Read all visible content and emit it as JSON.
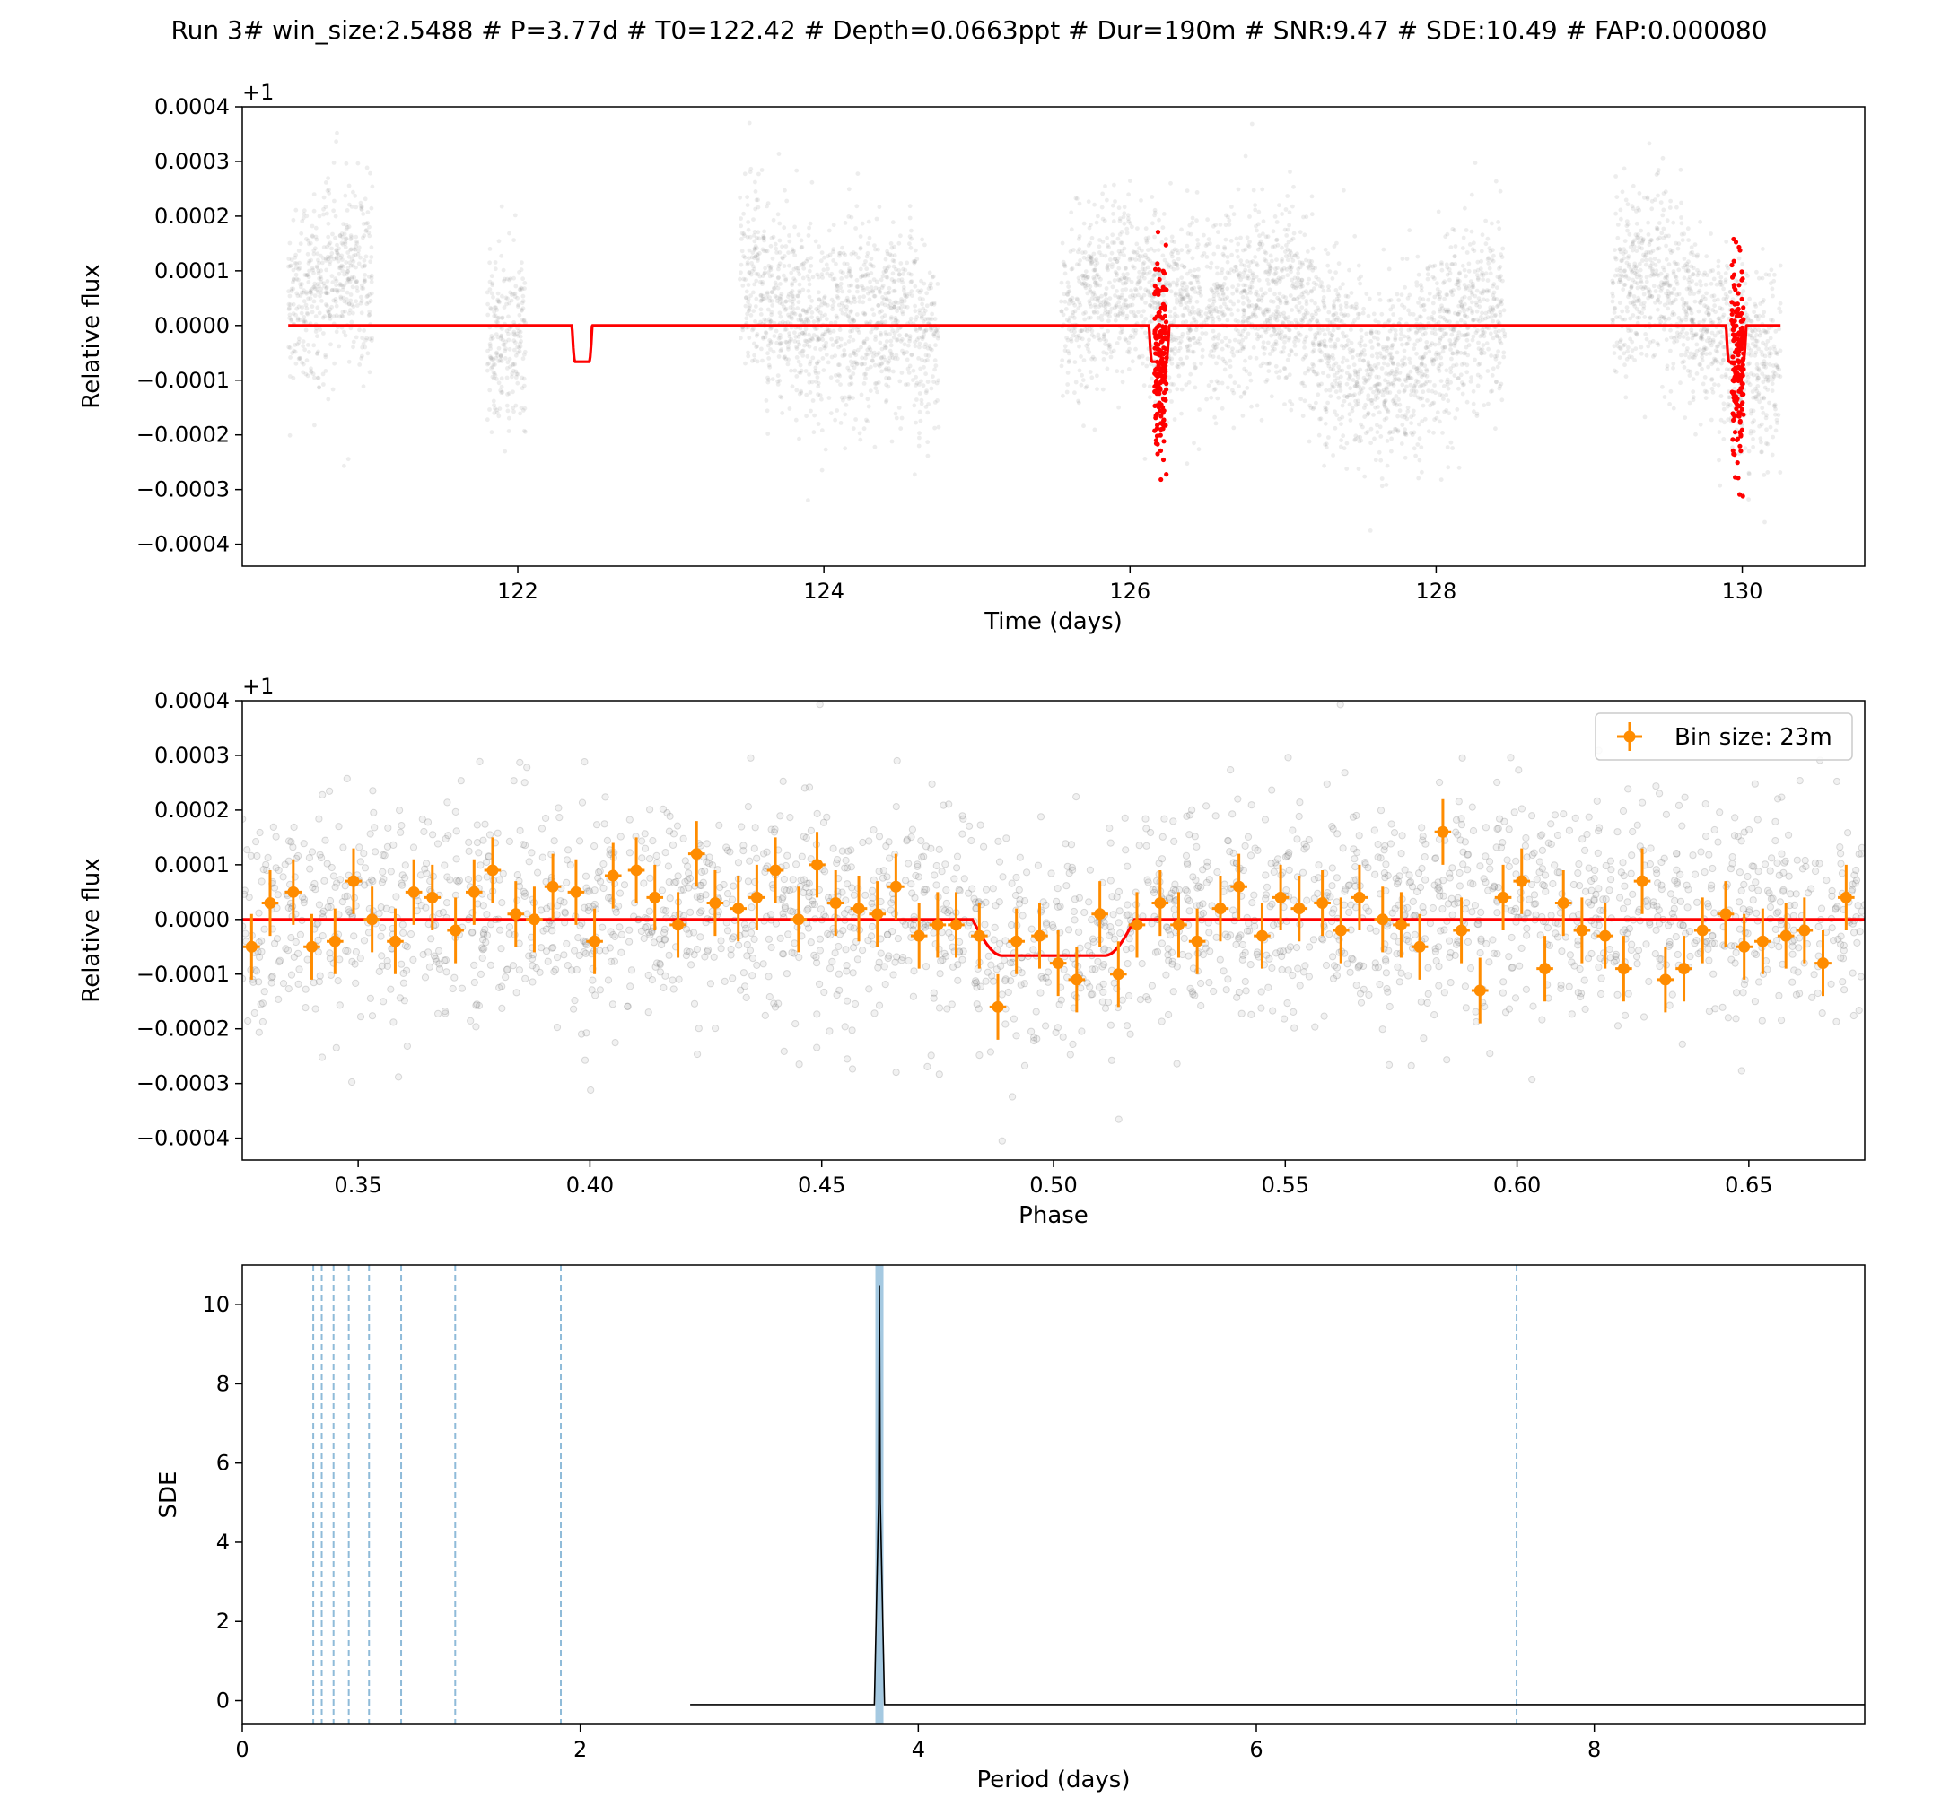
{
  "figure": {
    "title": "Run 3# win_size:2.5488 # P=3.77d # T0=122.42 # Depth=0.0663ppt # Dur=190m # SNR:9.47 # SDE:10.49 # FAP:0.000080"
  },
  "chart_data": [
    {
      "type": "scatter",
      "name": "light-curve",
      "xlabel": "Time (days)",
      "ylabel": "Relative flux",
      "offset_label": "+1",
      "xlim": [
        120.2,
        130.8
      ],
      "ylim": [
        -0.00044,
        0.0004
      ],
      "xticks": [
        122,
        124,
        126,
        128,
        130
      ],
      "xtick_labels": [
        "122",
        "124",
        "126",
        "128",
        "130"
      ],
      "yticks": [
        -0.0004,
        -0.0003,
        -0.0002,
        -0.0001,
        0.0,
        0.0001,
        0.0002,
        0.0003,
        0.0004
      ],
      "ytick_labels": [
        "−0.0004",
        "−0.0003",
        "−0.0002",
        "−0.0001",
        "0.0000",
        "0.0001",
        "0.0002",
        "0.0003",
        "0.0004"
      ],
      "data_segments": [
        [
          120.5,
          121.05
        ],
        [
          121.8,
          122.05
        ],
        [
          123.45,
          124.75
        ],
        [
          125.55,
          128.45
        ],
        [
          129.15,
          130.25
        ]
      ],
      "in_transit_times": [
        126.2,
        129.97
      ],
      "model": {
        "color": "#ff0000",
        "t_start": 120.5,
        "t_end": 130.25,
        "transit_centers": [
          122.42,
          126.19,
          129.96
        ],
        "duration_days": 0.132,
        "depth": -6.63e-05
      },
      "colors": {
        "points": "#808080",
        "in_transit": "#ff0000",
        "model": "#ff0000"
      }
    },
    {
      "type": "scatter",
      "name": "phase-folded",
      "xlabel": "Phase",
      "ylabel": "Relative flux",
      "offset_label": "+1",
      "xlim": [
        0.325,
        0.675
      ],
      "ylim": [
        -0.00044,
        0.0004
      ],
      "xticks": [
        0.35,
        0.4,
        0.45,
        0.5,
        0.55,
        0.6,
        0.65
      ],
      "xtick_labels": [
        "0.35",
        "0.40",
        "0.45",
        "0.50",
        "0.55",
        "0.60",
        "0.65"
      ],
      "yticks": [
        -0.0004,
        -0.0003,
        -0.0002,
        -0.0001,
        0.0,
        0.0001,
        0.0002,
        0.0003,
        0.0004
      ],
      "ytick_labels": [
        "−0.0004",
        "−0.0003",
        "−0.0002",
        "−0.0001",
        "0.0000",
        "0.0001",
        "0.0002",
        "0.0003",
        "0.0004"
      ],
      "legend": {
        "label": "Bin size: 23m",
        "placement": "top-right"
      },
      "binned": {
        "phase": [
          0.327,
          0.331,
          0.336,
          0.34,
          0.345,
          0.349,
          0.353,
          0.358,
          0.362,
          0.366,
          0.371,
          0.375,
          0.379,
          0.384,
          0.388,
          0.392,
          0.397,
          0.401,
          0.405,
          0.41,
          0.414,
          0.419,
          0.423,
          0.427,
          0.432,
          0.436,
          0.44,
          0.445,
          0.449,
          0.453,
          0.458,
          0.462,
          0.466,
          0.471,
          0.475,
          0.479,
          0.484,
          0.488,
          0.492,
          0.497,
          0.501,
          0.505,
          0.51,
          0.514,
          0.518,
          0.523,
          0.527,
          0.531,
          0.536,
          0.54,
          0.545,
          0.549,
          0.553,
          0.558,
          0.562,
          0.566,
          0.571,
          0.575,
          0.579,
          0.584,
          0.588,
          0.592,
          0.597,
          0.601,
          0.606,
          0.61,
          0.614,
          0.619,
          0.623,
          0.627,
          0.632,
          0.636,
          0.64,
          0.645,
          0.649,
          0.653,
          0.658,
          0.662,
          0.666,
          0.671
        ],
        "flux": [
          -5e-05,
          3e-05,
          5e-05,
          -5e-05,
          -4e-05,
          7e-05,
          0.0,
          -4e-05,
          5e-05,
          4e-05,
          -2e-05,
          5e-05,
          9e-05,
          1e-05,
          0.0,
          6e-05,
          5e-05,
          -4e-05,
          8e-05,
          9e-05,
          4e-05,
          -1e-05,
          0.00012,
          3e-05,
          2e-05,
          4e-05,
          9e-05,
          0.0,
          0.0001,
          3e-05,
          2e-05,
          1e-05,
          6e-05,
          -3e-05,
          -1e-05,
          -1e-05,
          -3e-05,
          -0.00016,
          -4e-05,
          -3e-05,
          -8e-05,
          -0.00011,
          1e-05,
          -0.0001,
          -1e-05,
          3e-05,
          -1e-05,
          -4e-05,
          2e-05,
          6e-05,
          -3e-05,
          4e-05,
          2e-05,
          3e-05,
          -2e-05,
          4e-05,
          0.0,
          -1e-05,
          -5e-05,
          0.00016,
          -2e-05,
          -0.00013,
          4e-05,
          7e-05,
          -9e-05,
          3e-05,
          -2e-05,
          -3e-05,
          -9e-05,
          7e-05,
          -0.00011,
          -9e-05,
          -2e-05,
          1e-05,
          -5e-05,
          -4e-05,
          -3e-05,
          -2e-05,
          -8e-05,
          4e-05
        ],
        "yerr": 6e-05,
        "xerr": 0.0018
      },
      "model": {
        "ingress_start": 0.4825,
        "ingress_end": 0.489,
        "egress_start": 0.511,
        "egress_end": 0.5175,
        "depth": -6.63e-05
      },
      "colors": {
        "points": "#808080",
        "binned": "#ff8c00",
        "model": "#ff0000"
      }
    },
    {
      "type": "line",
      "name": "periodogram",
      "xlabel": "Period (days)",
      "ylabel": "SDE",
      "xlim": [
        0,
        9.6
      ],
      "ylim": [
        -0.6,
        11.0
      ],
      "xticks": [
        0,
        2,
        4,
        6,
        8
      ],
      "xtick_labels": [
        "0",
        "2",
        "4",
        "6",
        "8"
      ],
      "yticks": [
        0,
        2,
        4,
        6,
        8,
        10
      ],
      "ytick_labels": [
        "0",
        "2",
        "4",
        "6",
        "8",
        "10"
      ],
      "series": [
        {
          "x": [
            2.65,
            3.74,
            3.765,
            3.77,
            3.775,
            3.8,
            9.6
          ],
          "y": [
            -0.1,
            -0.1,
            5.0,
            10.49,
            5.0,
            -0.1,
            -0.1
          ]
        }
      ],
      "best_period": 3.77,
      "harmonic_lines": [
        0.42,
        0.47,
        0.54,
        0.63,
        0.75,
        0.94,
        1.26,
        1.885,
        7.54
      ],
      "colors": {
        "line": "#000000",
        "harmonics": "#1f77b4",
        "best": "#1f77b4"
      }
    }
  ]
}
